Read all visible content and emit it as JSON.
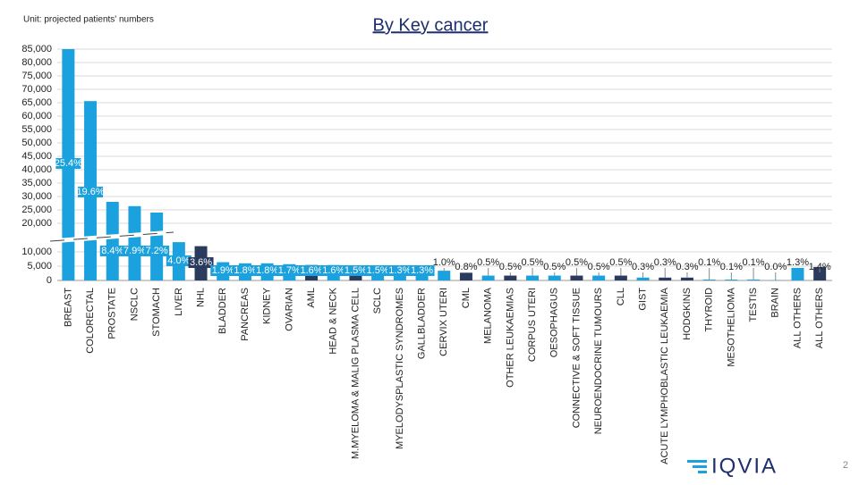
{
  "chart_data": {
    "type": "bar",
    "title": "By Key cancer",
    "subtitle": "Unit: projected patients' numbers",
    "categories": [
      "BREAST",
      "COLORECTAL",
      "PROSTATE",
      "NSCLC",
      "STOMACH",
      "LIVER",
      "NHL",
      "BLADDER",
      "PANCREAS",
      "KIDNEY",
      "OVARIAN",
      "AML",
      "HEAD & NECK",
      "M.MYELOMA & MALIG PLASMA CELL",
      "SCLC",
      "MYELODYSPLASTIC SYNDROMES",
      "GALLBLADDER",
      "CERVIX UTERI",
      "CML",
      "MELANOMA",
      "OTHER LEUKAEMIAS",
      "CORPUS UTERI",
      "OESOPHAGUS",
      "CONNECTIVE & SOFT TISSUE",
      "NEUROENDOCRINE TUMOURS",
      "CLL",
      "GIST",
      "ACUTE LYMPHOBLASTIC LEUKAEMIA",
      "HODGKINS",
      "THYROID",
      "MESOTHELIOMA",
      "TESTIS",
      "BRAIN",
      "ALL OTHERS",
      "ALL OTHERS"
    ],
    "values": [
      85000,
      65600,
      28000,
      26400,
      24000,
      13400,
      12000,
      6400,
      6000,
      6000,
      5700,
      5400,
      5400,
      5000,
      5000,
      4400,
      4400,
      3400,
      2700,
      1700,
      1700,
      1700,
      1700,
      1700,
      1700,
      1700,
      1000,
      1000,
      1000,
      300,
      300,
      300,
      100,
      4400,
      4700
    ],
    "share_labels": [
      "25.4%",
      "19.6%",
      "8.4%",
      "7.9%",
      "7.2%",
      "4.0%",
      "3.6%",
      "1.9%",
      "1.8%",
      "1.8%",
      "1.7%",
      "1.6%",
      "1.6%",
      "1.5%",
      "1.5%",
      "1.3%",
      "1.3%",
      "1.0%",
      "0.8%",
      "0.5%",
      "0.5%",
      "0.5%",
      "0.5%",
      "0.5%",
      "0.5%",
      "0.5%",
      "0.3%",
      "0.3%",
      "0.3%",
      "0.1%",
      "0.1%",
      "0.1%",
      "0.0%",
      "1.3%",
      "1.4%"
    ],
    "colors": [
      "#1ba1dd",
      "#1ba1dd",
      "#1ba1dd",
      "#1ba1dd",
      "#1ba1dd",
      "#1ba1dd",
      "#2a3b5e",
      "#1ba1dd",
      "#1ba1dd",
      "#1ba1dd",
      "#1ba1dd",
      "#2a3b5e",
      "#1ba1dd",
      "#2a3b5e",
      "#1ba1dd",
      "#1ba1dd",
      "#1ba1dd",
      "#1ba1dd",
      "#2a3b5e",
      "#1ba1dd",
      "#2a3b5e",
      "#1ba1dd",
      "#1ba1dd",
      "#2a3b5e",
      "#1ba1dd",
      "#2a3b5e",
      "#1ba1dd",
      "#2a3b5e",
      "#2a3b5e",
      "#1ba1dd",
      "#1ba1dd",
      "#1ba1dd",
      "#1ba1dd",
      "#1ba1dd",
      "#2a3b5e"
    ],
    "ylim": [
      0,
      85000
    ],
    "axis_break": [
      15000,
      20000
    ],
    "yticks": [
      {
        "value": 0,
        "label": "0"
      },
      {
        "value": 5000,
        "label": "5,000"
      },
      {
        "value": 10000,
        "label": "10,000"
      },
      {
        "value": 20000,
        "label": "20,000"
      },
      {
        "value": 25000,
        "label": "25,000"
      },
      {
        "value": 30000,
        "label": "30,000"
      },
      {
        "value": 35000,
        "label": "35,000"
      },
      {
        "value": 40000,
        "label": "40,000"
      },
      {
        "value": 45000,
        "label": "45,000"
      },
      {
        "value": 50000,
        "label": "50,000"
      },
      {
        "value": 55000,
        "label": "55,000"
      },
      {
        "value": 60000,
        "label": "60,000"
      },
      {
        "value": 65000,
        "label": "65,000"
      },
      {
        "value": 70000,
        "label": "70,000"
      },
      {
        "value": 75000,
        "label": "75,000"
      },
      {
        "value": 80000,
        "label": "80,000"
      },
      {
        "value": 85000,
        "label": "85,000"
      }
    ],
    "grid": true
  },
  "footer": {
    "logo": "IQVIA",
    "page": "2"
  }
}
